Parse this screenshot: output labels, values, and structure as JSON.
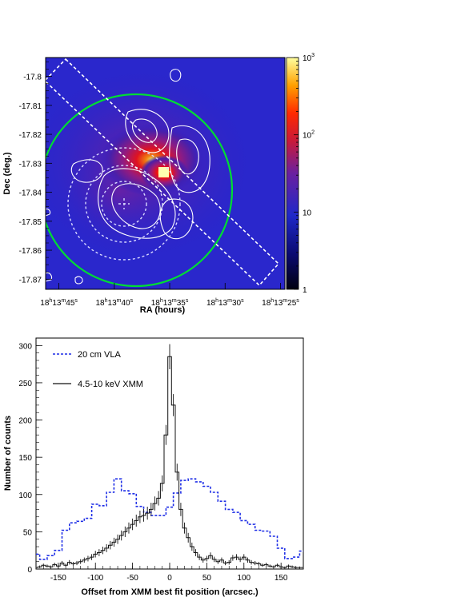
{
  "chart_data": [
    {
      "type": "heatmap",
      "xlabel": "RA (hours)",
      "ylabel": "Dec (deg.)",
      "x_ticks": [
        {
          "h": "18",
          "m": "13",
          "s": "45"
        },
        {
          "h": "18",
          "m": "13",
          "s": "40"
        },
        {
          "h": "18",
          "m": "13",
          "s": "35"
        },
        {
          "h": "18",
          "m": "13",
          "s": "30"
        },
        {
          "h": "18",
          "m": "13",
          "s": "25"
        }
      ],
      "y_ticks": [
        "-17.8",
        "-17.81",
        "-17.82",
        "-17.83",
        "-17.84",
        "-17.85",
        "-17.86",
        "-17.87"
      ],
      "colorbar": {
        "scale": "log",
        "range": [
          1,
          1000
        ],
        "tick_labels": [
          "1",
          "10",
          "10",
          "10"
        ],
        "tick_exponents": [
          "",
          "",
          "2",
          "3"
        ]
      },
      "x_range_seconds": [
        46.2,
        24.6
      ],
      "y_range": [
        -17.8735,
        -17.7935
      ],
      "peak": {
        "ra_s": 34.8,
        "dec": -17.8335,
        "counts": 1000
      },
      "overlays": {
        "green_circle": {
          "ra_s": 34.8,
          "dec": -17.8335,
          "radius_deg": 0.026
        },
        "dashed_box": "rotated extraction region",
        "dashed_circles": 3,
        "contours": "white radio contours"
      },
      "colors": {
        "circle": "#00dd33",
        "contour": "#ffffff",
        "dashed": "#ffffff"
      }
    },
    {
      "type": "line",
      "xlabel": "Offset from XMM best fit position (arcsec.)",
      "ylabel": "Number of counts",
      "xlim": [
        -180,
        180
      ],
      "ylim": [
        0,
        310
      ],
      "x_ticks": [
        -150,
        -100,
        -50,
        0,
        50,
        100,
        150
      ],
      "y_ticks": [
        0,
        50,
        100,
        150,
        200,
        250,
        300
      ],
      "legend_position": "top-left",
      "series": [
        {
          "name": "20 cm VLA",
          "color": "#1f2fe6",
          "style": "dashed-step",
          "x": [
            -180,
            -170,
            -160,
            -150,
            -140,
            -130,
            -120,
            -110,
            -100,
            -90,
            -80,
            -70,
            -60,
            -50,
            -40,
            -30,
            -20,
            -10,
            0,
            10,
            20,
            30,
            40,
            50,
            60,
            70,
            80,
            90,
            100,
            110,
            120,
            130,
            140,
            150,
            160,
            170,
            180
          ],
          "values": [
            20,
            13,
            18,
            25,
            52,
            62,
            64,
            68,
            87,
            85,
            103,
            121,
            105,
            101,
            84,
            76,
            72,
            72,
            83,
            102,
            119,
            121,
            117,
            111,
            103,
            91,
            80,
            76,
            65,
            60,
            52,
            51,
            44,
            28,
            14,
            16,
            24
          ]
        },
        {
          "name": "4.5-10 keV XMM",
          "color": "#111111",
          "style": "step-errorbars",
          "x": [
            -180,
            -175,
            -170,
            -165,
            -160,
            -155,
            -150,
            -145,
            -140,
            -135,
            -130,
            -125,
            -120,
            -115,
            -110,
            -105,
            -100,
            -95,
            -90,
            -85,
            -80,
            -75,
            -70,
            -65,
            -60,
            -55,
            -50,
            -45,
            -40,
            -35,
            -30,
            -25,
            -20,
            -15,
            -10,
            -5,
            0,
            5,
            10,
            15,
            20,
            25,
            30,
            35,
            40,
            45,
            50,
            55,
            60,
            65,
            70,
            75,
            80,
            85,
            90,
            95,
            100,
            105,
            110,
            115,
            120,
            125,
            130,
            135,
            140,
            145,
            150,
            155,
            160,
            165,
            170,
            175,
            180
          ],
          "values": [
            2,
            3,
            5,
            4,
            3,
            6,
            4,
            8,
            5,
            9,
            7,
            8,
            10,
            12,
            14,
            16,
            20,
            22,
            25,
            28,
            32,
            36,
            40,
            45,
            50,
            55,
            60,
            65,
            70,
            72,
            75,
            80,
            88,
            95,
            115,
            180,
            285,
            220,
            130,
            80,
            55,
            42,
            30,
            22,
            16,
            12,
            14,
            18,
            13,
            10,
            12,
            8,
            9,
            15,
            16,
            13,
            16,
            12,
            9,
            8,
            7,
            5,
            6,
            4,
            3,
            5,
            3,
            2,
            4,
            3,
            2,
            2,
            2
          ]
        }
      ]
    }
  ]
}
